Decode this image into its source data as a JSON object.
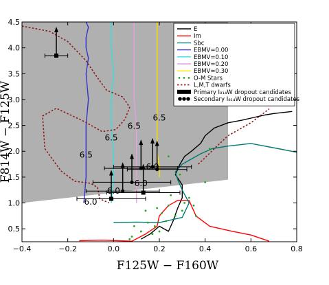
{
  "chart_data": {
    "type": "scatter",
    "xlabel": "F125W − F160W",
    "ylabel": "F814W − F125W",
    "xlim": [
      -0.4,
      0.8
    ],
    "ylim": [
      0.25,
      4.5
    ],
    "xticks": [
      "−0.4",
      "−0.2",
      "0.0",
      "0.2",
      "0.4",
      "0.6",
      "0.8"
    ],
    "xtick_values": [
      -0.4,
      -0.2,
      0.0,
      0.2,
      0.4,
      0.6,
      0.8
    ],
    "yticks": [
      "0.5",
      "1.0",
      "1.5",
      "2.0",
      "2.5",
      "3.0",
      "3.5",
      "4.0",
      "4.5"
    ],
    "ytick_values": [
      0.5,
      1.0,
      1.5,
      2.0,
      2.5,
      3.0,
      3.5,
      4.0,
      4.5
    ],
    "grid": false,
    "legend_position": "top-right",
    "selection_region": {
      "color": "#b0b0b0",
      "polygon": [
        [
          -0.4,
          4.5
        ],
        [
          0.5,
          4.5
        ],
        [
          0.5,
          1.45
        ],
        [
          -0.4,
          1.0
        ]
      ]
    },
    "series": [
      {
        "name": "E",
        "kind": "line",
        "color": "#000000",
        "x": [
          0.12,
          0.16,
          0.2,
          0.24,
          0.26,
          0.28,
          0.3,
          0.3,
          0.27,
          0.29,
          0.31,
          0.34,
          0.38,
          0.4,
          0.44,
          0.5,
          0.56,
          0.62,
          0.66,
          0.7,
          0.78
        ],
        "y": [
          0.3,
          0.4,
          0.55,
          0.45,
          0.65,
          0.9,
          1.1,
          1.35,
          1.55,
          1.75,
          1.9,
          2.0,
          2.15,
          2.3,
          2.45,
          2.55,
          2.6,
          2.66,
          2.7,
          2.73,
          2.77
        ]
      },
      {
        "name": "Im",
        "kind": "line",
        "color": "#ff0000",
        "x": [
          -0.15,
          -0.05,
          0.08,
          0.14,
          0.19,
          0.2,
          0.24,
          0.28,
          0.33,
          0.36,
          0.42,
          0.52,
          0.6,
          0.68
        ],
        "y": [
          0.27,
          0.28,
          0.26,
          0.4,
          0.55,
          0.75,
          0.95,
          1.05,
          1.05,
          0.75,
          0.55,
          0.45,
          0.38,
          0.26
        ]
      },
      {
        "name": "Sbc",
        "kind": "line",
        "color": "#007a74",
        "x": [
          0.0,
          0.1,
          0.2,
          0.3,
          0.33,
          0.3,
          0.28,
          0.27,
          0.3,
          0.34,
          0.38,
          0.43,
          0.5,
          0.6,
          0.72,
          0.8
        ],
        "y": [
          0.62,
          0.63,
          0.62,
          0.72,
          1.0,
          1.25,
          1.45,
          1.6,
          1.75,
          1.85,
          1.95,
          2.05,
          2.1,
          2.15,
          2.05,
          1.98
        ]
      },
      {
        "name": "EBMV=0.00",
        "kind": "line",
        "color": "#3333cc",
        "x": [
          -0.13,
          -0.12,
          -0.12,
          -0.12,
          -0.11,
          -0.12,
          -0.11,
          -0.12,
          -0.12,
          -0.11,
          -0.12
        ],
        "y": [
          1.0,
          1.5,
          2.0,
          2.5,
          3.0,
          3.5,
          3.8,
          4.0,
          4.2,
          4.4,
          4.5
        ]
      },
      {
        "name": "EBMV=0.10",
        "kind": "line",
        "color": "#33e0e0",
        "x": [
          -0.01,
          0.0,
          0.0,
          -0.01,
          -0.01,
          0.0,
          -0.01,
          -0.01
        ],
        "y": [
          1.0,
          1.5,
          2.0,
          2.5,
          3.0,
          3.5,
          4.0,
          4.5
        ]
      },
      {
        "name": "EBMV=0.20",
        "kind": "line",
        "color": "#e4a0e0",
        "x": [
          0.1,
          0.1,
          0.1,
          0.1,
          0.09,
          0.09,
          0.09
        ],
        "y": [
          1.0,
          1.5,
          2.0,
          2.5,
          3.0,
          4.0,
          4.5
        ]
      },
      {
        "name": "EBMV=0.30",
        "kind": "line",
        "color": "#ffe000",
        "x": [
          0.2,
          0.2,
          0.19,
          0.19,
          0.19,
          0.19,
          0.19,
          0.19
        ],
        "y": [
          1.5,
          1.7,
          2.0,
          2.5,
          3.0,
          3.5,
          4.0,
          4.5
        ]
      },
      {
        "name": "O-M Stars",
        "kind": "points",
        "color": "#22aa22",
        "x": [
          0.07,
          0.08,
          0.09,
          0.12,
          0.14,
          0.15,
          0.17,
          0.18,
          0.19,
          0.2,
          0.21,
          0.23,
          0.24,
          0.25,
          0.27,
          0.3,
          0.31,
          0.33,
          0.35,
          0.36,
          0.4,
          0.42,
          0.24,
          0.29
        ],
        "y": [
          0.3,
          0.35,
          0.55,
          0.45,
          0.85,
          0.62,
          0.4,
          0.55,
          0.9,
          0.45,
          0.8,
          0.65,
          0.95,
          1.15,
          0.75,
          0.85,
          1.0,
          1.1,
          0.95,
          0.75,
          1.4,
          2.05,
          1.9,
          1.55
        ]
      },
      {
        "name": "L,M,T dwarfs",
        "kind": "dashed-line",
        "color": "#8b1a1a",
        "x": [
          -0.4,
          -0.28,
          -0.2,
          -0.12,
          -0.07,
          -0.03,
          0.04,
          0.07,
          0.05,
          0.01,
          -0.05,
          -0.13,
          -0.25,
          -0.31,
          -0.3,
          -0.23,
          -0.17,
          -0.1,
          -0.07,
          -0.06,
          -0.02
        ],
        "y": [
          4.42,
          4.32,
          4.12,
          3.75,
          3.42,
          3.18,
          3.05,
          2.85,
          2.62,
          2.42,
          2.38,
          2.58,
          2.83,
          2.68,
          2.05,
          1.62,
          1.42,
          1.38,
          1.3,
          1.08,
          1.0
        ]
      },
      {
        "name": "",
        "kind": "dashed-line",
        "color": "#8b1a1a",
        "x": [
          0.37,
          0.44,
          0.5,
          0.6,
          0.68
        ],
        "y": [
          1.75,
          2.05,
          2.3,
          2.55,
          2.82
        ]
      },
      {
        "name": "Primary I_F814W dropout candidates",
        "kind": "points",
        "color": "#000000",
        "points": [
          {
            "x": -0.25,
            "y": 3.85,
            "xerr": 0.05,
            "lower_limit": true
          },
          {
            "x": -0.01,
            "y": 1.08,
            "xerr": 0.15,
            "lower_limit": true
          },
          {
            "x": 0.13,
            "y": 1.2,
            "xerr": 0.16,
            "lower_limit": true
          }
        ]
      },
      {
        "name": "Secondary I_F814W dropout candidates",
        "kind": "points",
        "color": "#000000",
        "points": [
          {
            "x": 0.04,
            "y": 1.23,
            "xerr": 0.16,
            "lower_limit": true
          },
          {
            "x": 0.08,
            "y": 1.4,
            "xerr": 0.17,
            "lower_limit": true
          },
          {
            "x": 0.12,
            "y": 1.67,
            "xerr": 0.16,
            "lower_limit": true
          },
          {
            "x": 0.17,
            "y": 1.7,
            "xerr": 0.17,
            "lower_limit": true
          },
          {
            "x": 0.19,
            "y": 1.65,
            "xerr": 0.13,
            "lower_limit": true
          }
        ]
      }
    ],
    "annotations": [
      {
        "text": "6.5",
        "x": 0.2,
        "y": 2.65
      },
      {
        "text": "6.5",
        "x": 0.09,
        "y": 2.49
      },
      {
        "text": "6.5",
        "x": -0.01,
        "y": 2.26
      },
      {
        "text": "6.5",
        "x": -0.12,
        "y": 1.93
      },
      {
        "text": "6.0",
        "x": 0.17,
        "y": 1.7
      },
      {
        "text": "6.0",
        "x": 0.12,
        "y": 1.38
      },
      {
        "text": "6.0",
        "x": 0.0,
        "y": 1.23
      },
      {
        "text": "6.0",
        "x": -0.1,
        "y": 1.02
      }
    ],
    "legend": [
      {
        "label": "E",
        "color": "#000000",
        "marker": "line"
      },
      {
        "label": "Im",
        "color": "#ff0000",
        "marker": "line"
      },
      {
        "label": "Sbc",
        "color": "#007a74",
        "marker": "line"
      },
      {
        "label": "EBMV=0.00",
        "color": "#3333cc",
        "marker": "line"
      },
      {
        "label": "EBMV=0.10",
        "color": "#33e0e0",
        "marker": "line"
      },
      {
        "label": "EBMV=0.20",
        "color": "#e4a0e0",
        "marker": "line"
      },
      {
        "label": "EBMV=0.30",
        "color": "#ffe000",
        "marker": "line"
      },
      {
        "label": "O-M Stars",
        "color": "#22aa22",
        "marker": "dots"
      },
      {
        "label": "L,M,T dwarfs",
        "color": "#8b1a1a",
        "marker": "dashed"
      },
      {
        "label": "Primary I₈₁₄W dropout candidates",
        "color": "#000000",
        "marker": "squares"
      },
      {
        "label": "Secondary I₈₁₄W dropout candidates",
        "color": "#000000",
        "marker": "circles"
      }
    ]
  }
}
